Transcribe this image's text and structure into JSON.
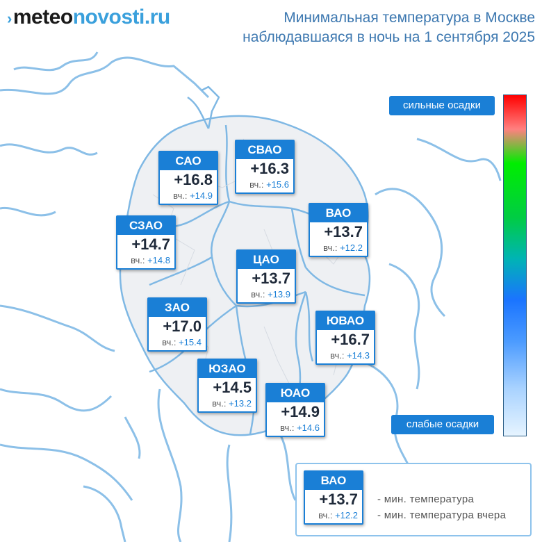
{
  "logo": {
    "prefix": "›",
    "part1": "meteo",
    "part2": "novosti.ru"
  },
  "title": {
    "line1": "Минимальная температура в Москве",
    "line2": "наблюдавшаяся в ночь на 1 сентября 2025"
  },
  "districts": [
    {
      "name": "САО",
      "value": "+16.8",
      "prev_label": "вч.:",
      "prev": "+14.9"
    },
    {
      "name": "СВАО",
      "value": "+16.3",
      "prev_label": "вч.:",
      "prev": "+15.6"
    },
    {
      "name": "ВАО",
      "value": "+13.7",
      "prev_label": "вч.:",
      "prev": "+12.2"
    },
    {
      "name": "СЗАО",
      "value": "+14.7",
      "prev_label": "вч.:",
      "prev": "+14.8"
    },
    {
      "name": "ЦАО",
      "value": "+13.7",
      "prev_label": "вч.:",
      "prev": "+13.9"
    },
    {
      "name": "ЗАО",
      "value": "+17.0",
      "prev_label": "вч.:",
      "prev": "+15.4"
    },
    {
      "name": "ЮВАО",
      "value": "+16.7",
      "prev_label": "вч.:",
      "prev": "+14.3"
    },
    {
      "name": "ЮЗАО",
      "value": "+14.5",
      "prev_label": "вч.:",
      "prev": "+13.2"
    },
    {
      "name": "ЮАО",
      "value": "+14.9",
      "prev_label": "вч.:",
      "prev": "+14.6"
    }
  ],
  "scale": {
    "top_label": "сильные осадки",
    "bottom_label": "слабые осадки"
  },
  "legend": {
    "example": {
      "name": "ВАО",
      "value": "+13.7",
      "prev_label": "вч.:",
      "prev": "+12.2"
    },
    "line1": "- мин. температура",
    "line2": "- мин. температура вчера"
  },
  "colors": {
    "accent": "#1a7fd6",
    "boundary": "#7fb8e4",
    "title": "#3d78b0"
  }
}
